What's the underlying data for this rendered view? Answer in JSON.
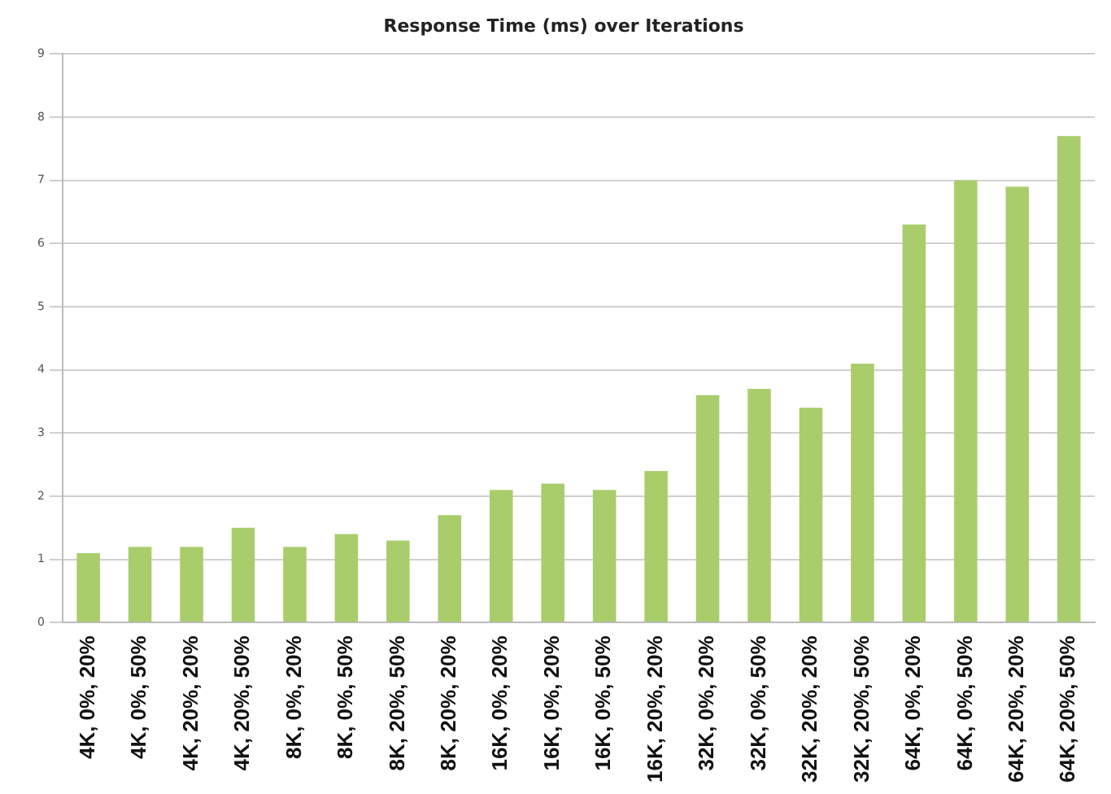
{
  "chart_data": {
    "type": "bar",
    "title": "Response Time (ms) over Iterations",
    "categories": [
      "4K, 0%, 20%",
      "4K, 0%, 50%",
      "4K, 20%, 20%",
      "4K, 20%, 50%",
      "8K, 0%, 20%",
      "8K, 0%, 50%",
      "8K, 20%, 50%",
      "8K, 20%, 20%",
      "16K, 0%, 20%",
      "16K, 0%, 20%",
      "16K, 0%, 50%",
      "16K, 20%, 20%",
      "32K, 0%, 20%",
      "32K, 0%, 50%",
      "32K, 20%, 20%",
      "32K, 20%, 50%",
      "64K, 0%, 20%",
      "64K, 0%, 50%",
      "64K, 20%, 20%",
      "64K, 20%, 50%"
    ],
    "values": [
      1.1,
      1.2,
      1.2,
      1.5,
      1.2,
      1.4,
      1.3,
      1.7,
      2.1,
      2.2,
      2.1,
      2.4,
      3.6,
      3.7,
      3.4,
      4.1,
      6.3,
      7.0,
      6.9,
      7.7
    ],
    "color": "#a9cd6b",
    "ylim": [
      0,
      9
    ],
    "yticks": [
      0,
      1,
      2,
      3,
      4,
      5,
      6,
      7,
      8,
      9
    ],
    "grid": "y",
    "legend": false
  }
}
